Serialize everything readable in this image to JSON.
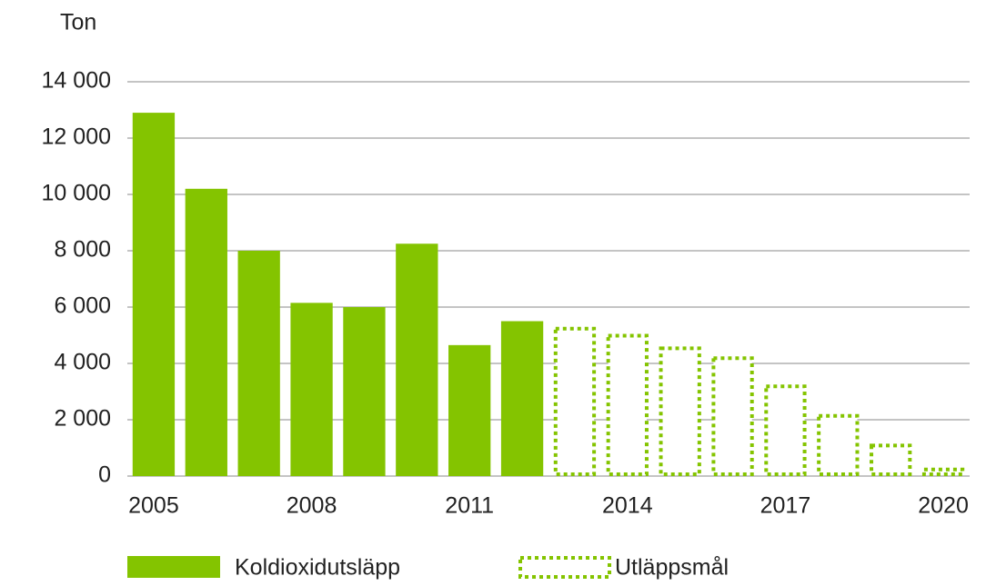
{
  "chart_data": {
    "type": "bar",
    "y_label": "Ton",
    "categories": [
      "2005",
      null,
      null,
      "2008",
      null,
      null,
      "2011",
      null,
      null,
      "2014",
      null,
      null,
      "2017",
      null,
      null,
      "2020"
    ],
    "series": [
      {
        "name": "Koldioxidutsläpp",
        "color": "#84c400",
        "style": "solid",
        "values": [
          12900,
          10200,
          8000,
          6150,
          6000,
          8250,
          4650,
          5500,
          null,
          null,
          null,
          null,
          null,
          null,
          null,
          null
        ]
      },
      {
        "name": "Utläppsmål",
        "color": "#84c400",
        "style": "dotted",
        "values": [
          null,
          null,
          null,
          null,
          null,
          null,
          null,
          null,
          5300,
          5050,
          4600,
          4250,
          3250,
          2200,
          1150,
          300
        ]
      }
    ],
    "ylim": [
      0,
      14000
    ],
    "yticks": [
      0,
      {
        "value": 2000,
        "label": "2 000"
      },
      {
        "value": 4000,
        "label": "4 000"
      },
      {
        "value": 6000,
        "label": "6 000"
      },
      {
        "value": 8000,
        "label": "8 000"
      },
      {
        "value": 10000,
        "label": "10 000"
      },
      {
        "value": 12000,
        "label": "12 000"
      },
      {
        "value": 14000,
        "label": "14 000"
      }
    ],
    "grid": true,
    "legend": "bottom"
  }
}
